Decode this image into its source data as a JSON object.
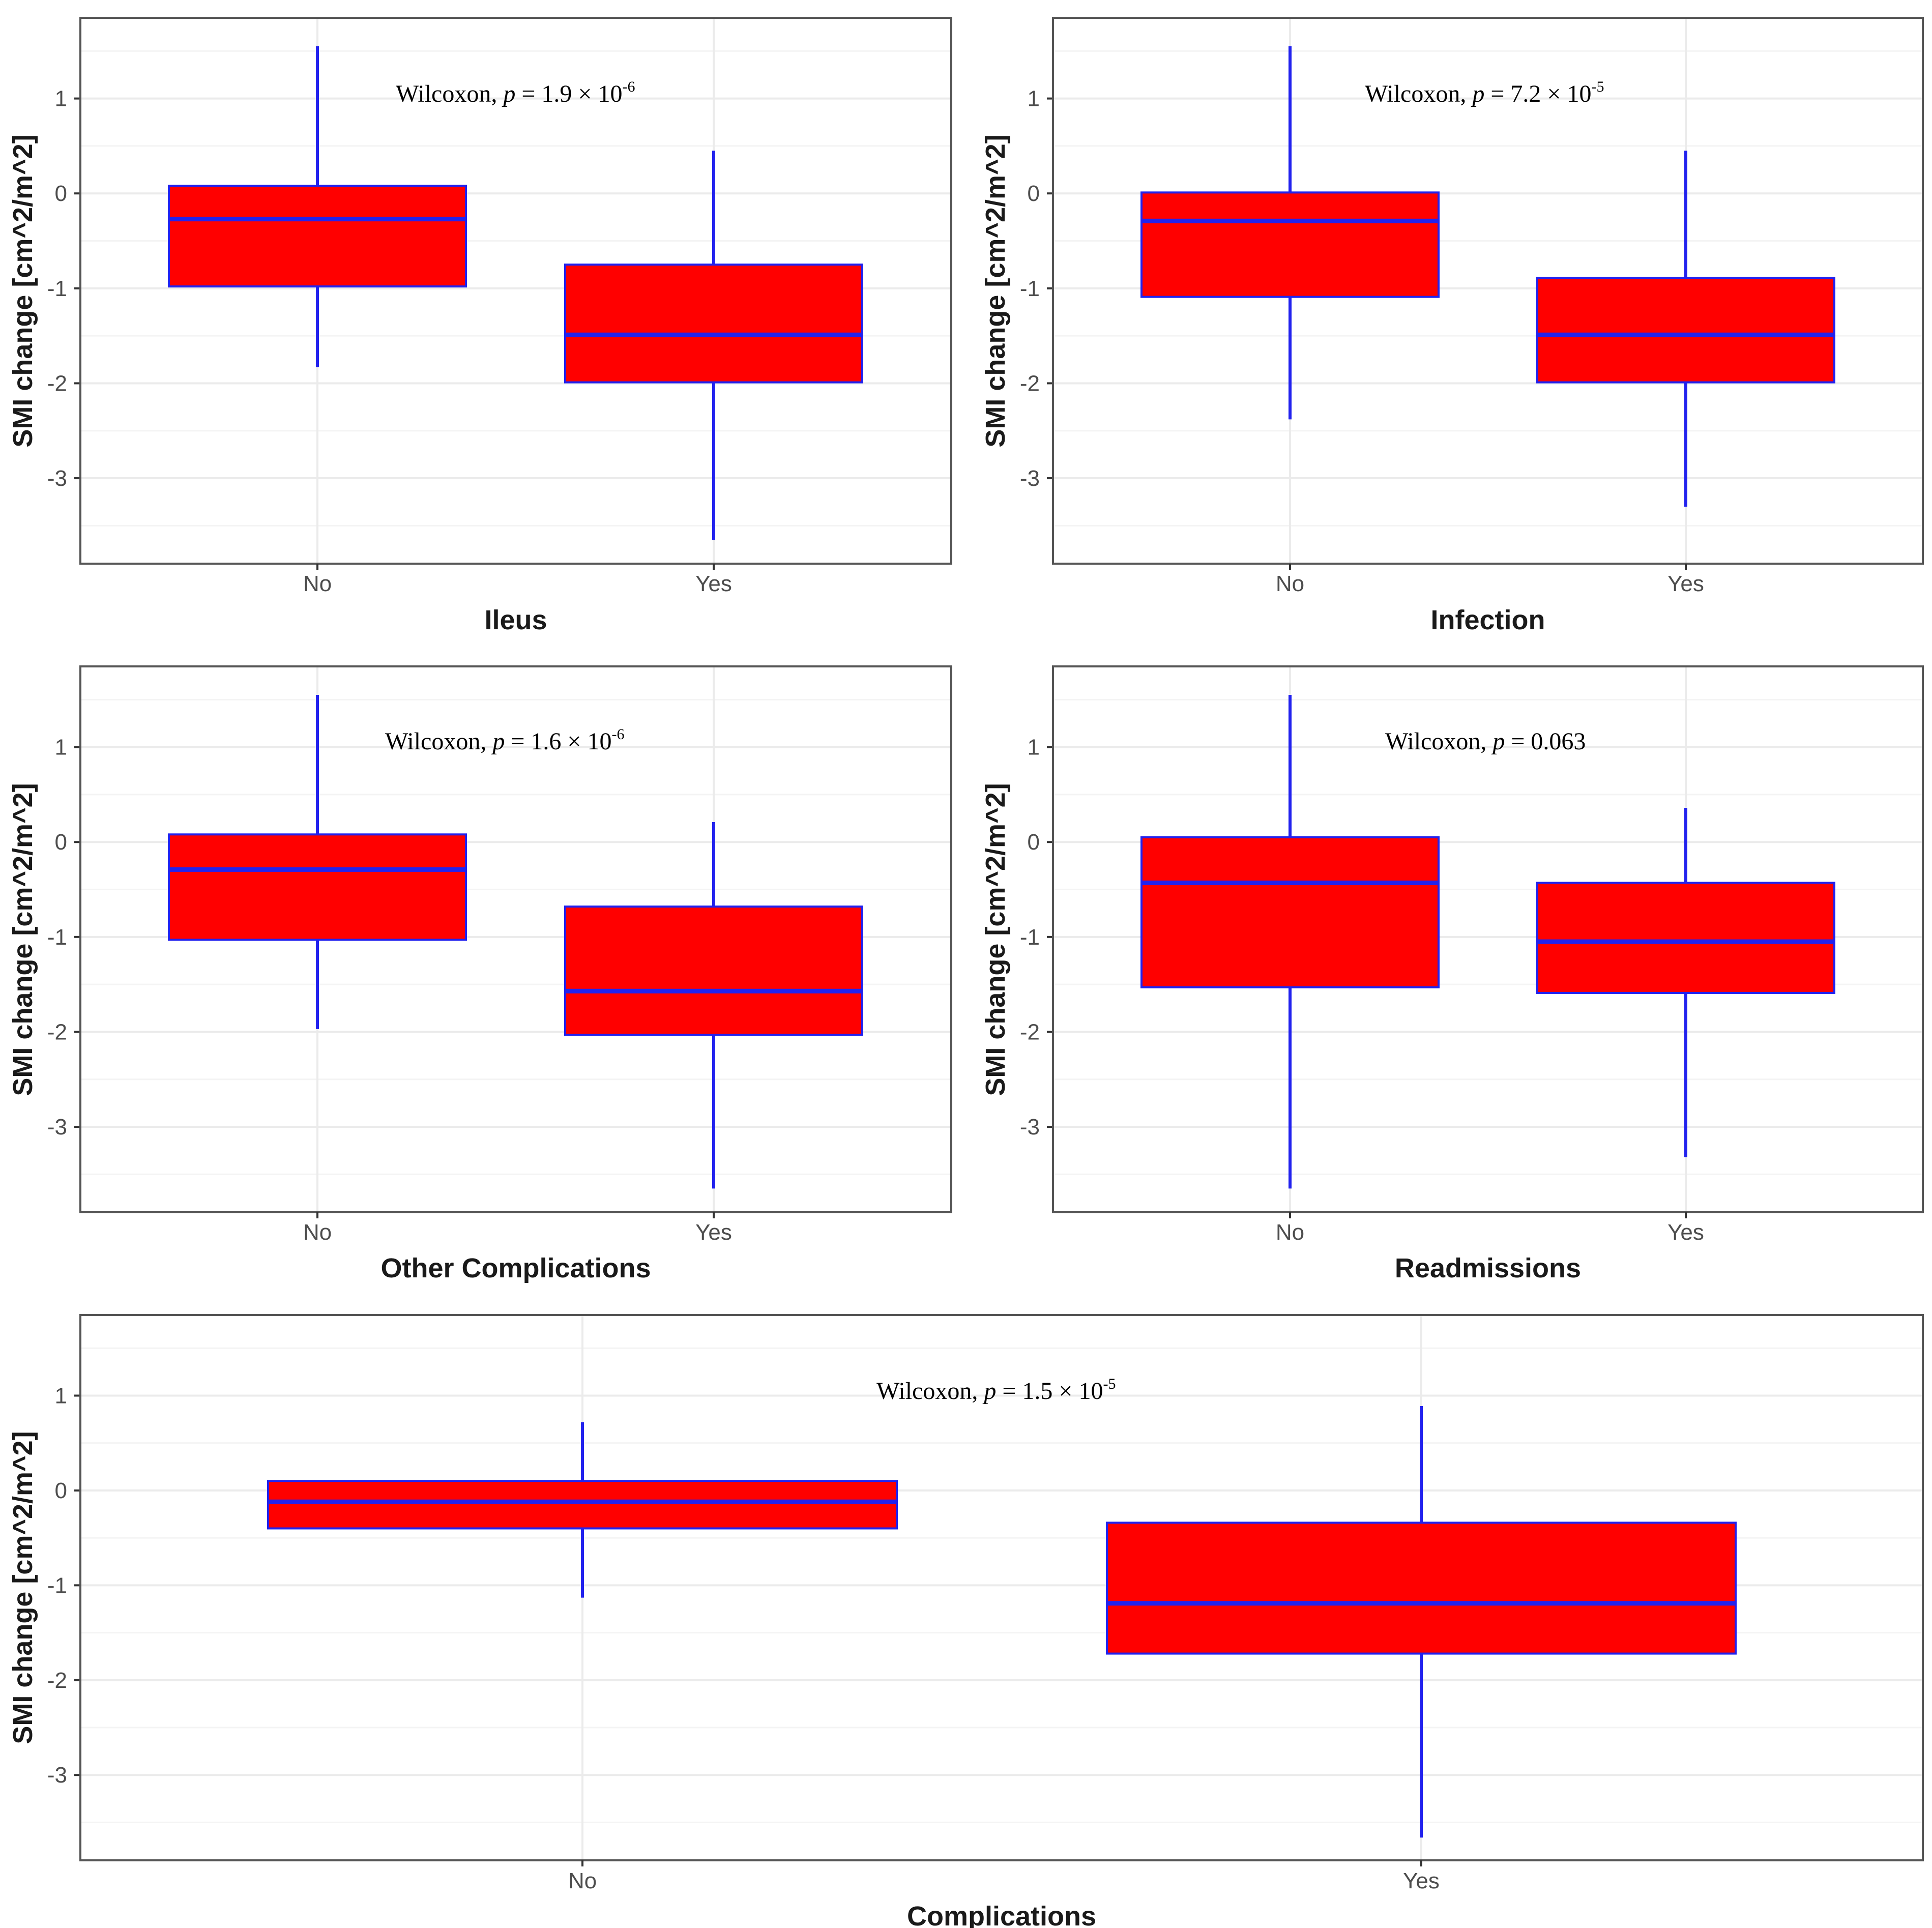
{
  "colors": {
    "box_fill": "#ff0000",
    "box_stroke": "#2222ee",
    "grid_major": "#ebebeb",
    "grid_minor": "#f4f4f4",
    "panel_border": "#555555"
  },
  "chart_data": [
    {
      "type": "boxplot",
      "xlabel": "Ileus",
      "ylabel": "SMI change [cm^2/m^2]",
      "ylim": [
        -3.9,
        1.85
      ],
      "yticks": [
        "1",
        "0",
        "-1",
        "-2",
        "-3"
      ],
      "annotation": {
        "prefix": "Wilcoxon, ",
        "p": "p",
        "eq": " = 1.9 × 10",
        "exp": "-6"
      },
      "categories": [
        "No",
        "Yes"
      ],
      "boxes": [
        {
          "category": "No",
          "whisker_low": -1.83,
          "q1": -0.98,
          "median": -0.27,
          "q3": 0.08,
          "whisker_high": 1.55
        },
        {
          "category": "Yes",
          "whisker_low": -3.65,
          "q1": -1.99,
          "median": -1.49,
          "q3": -0.75,
          "whisker_high": 0.45
        }
      ]
    },
    {
      "type": "boxplot",
      "xlabel": "Infection",
      "ylabel": "SMI change [cm^2/m^2]",
      "ylim": [
        -3.9,
        1.85
      ],
      "yticks": [
        "1",
        "0",
        "-1",
        "-2",
        "-3"
      ],
      "annotation": {
        "prefix": "Wilcoxon, ",
        "p": "p",
        "eq": " = 7.2 × 10",
        "exp": "-5"
      },
      "categories": [
        "No",
        "Yes"
      ],
      "boxes": [
        {
          "category": "No",
          "whisker_low": -2.38,
          "q1": -1.09,
          "median": -0.29,
          "q3": 0.01,
          "whisker_high": 1.55
        },
        {
          "category": "Yes",
          "whisker_low": -3.3,
          "q1": -1.99,
          "median": -1.49,
          "q3": -0.89,
          "whisker_high": 0.45
        }
      ]
    },
    {
      "type": "boxplot",
      "xlabel": "Other Complications",
      "ylabel": "SMI change [cm^2/m^2]",
      "ylim": [
        -3.9,
        1.85
      ],
      "yticks": [
        "1",
        "0",
        "-1",
        "-2",
        "-3"
      ],
      "annotation": {
        "prefix": "Wilcoxon, ",
        "p": "p",
        "eq": " = 1.6 × 10",
        "exp": "-6"
      },
      "categories": [
        "No",
        "Yes"
      ],
      "boxes": [
        {
          "category": "No",
          "whisker_low": -1.97,
          "q1": -1.03,
          "median": -0.29,
          "q3": 0.08,
          "whisker_high": 1.55
        },
        {
          "category": "Yes",
          "whisker_low": -3.65,
          "q1": -2.03,
          "median": -1.57,
          "q3": -0.68,
          "whisker_high": 0.21
        }
      ]
    },
    {
      "type": "boxplot",
      "xlabel": "Readmissions",
      "ylabel": "SMI change [cm^2/m^2]",
      "ylim": [
        -3.9,
        1.85
      ],
      "yticks": [
        "1",
        "0",
        "-1",
        "-2",
        "-3"
      ],
      "annotation": {
        "prefix": "Wilcoxon, ",
        "p": "p",
        "eq": " = 0.063",
        "exp": ""
      },
      "categories": [
        "No",
        "Yes"
      ],
      "boxes": [
        {
          "category": "No",
          "whisker_low": -3.65,
          "q1": -1.53,
          "median": -0.43,
          "q3": 0.05,
          "whisker_high": 1.55
        },
        {
          "category": "Yes",
          "whisker_low": -3.32,
          "q1": -1.59,
          "median": -1.05,
          "q3": -0.43,
          "whisker_high": 0.36
        }
      ]
    },
    {
      "type": "boxplot",
      "xlabel": "Complications",
      "ylabel": "SMI change [cm^2/m^2]",
      "ylim": [
        -3.9,
        1.85
      ],
      "yticks": [
        "1",
        "0",
        "-1",
        "-2",
        "-3"
      ],
      "annotation": {
        "prefix": "Wilcoxon, ",
        "p": "p",
        "eq": " = 1.5 × 10",
        "exp": "-5"
      },
      "categories": [
        "No",
        "Yes"
      ],
      "boxes": [
        {
          "category": "No",
          "whisker_low": -1.13,
          "q1": -0.4,
          "median": -0.12,
          "q3": 0.1,
          "whisker_high": 0.72
        },
        {
          "category": "Yes",
          "whisker_low": -3.66,
          "q1": -1.72,
          "median": -1.19,
          "q3": -0.34,
          "whisker_high": 0.89
        }
      ]
    }
  ]
}
